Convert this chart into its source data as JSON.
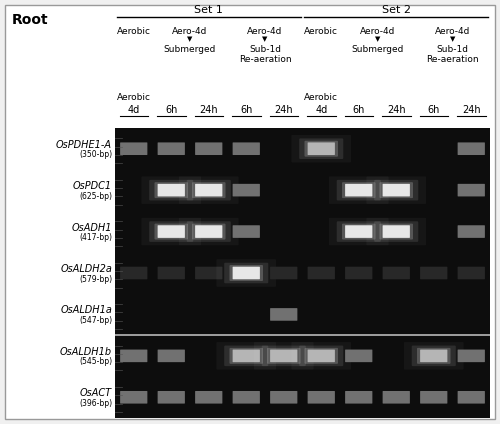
{
  "title": "Root",
  "set1_label": "Set 1",
  "set2_label": "Set 2",
  "time_labels": [
    "4d",
    "6h",
    "24h",
    "6h",
    "24h",
    "4d",
    "6h",
    "24h",
    "6h",
    "24h"
  ],
  "gene_labels_italic": [
    "OsPDHE1-A",
    "OsPDC1",
    "OsADH1",
    "OsALDH2a",
    "OsALDH1a",
    "OsALDH1b",
    "OsACT"
  ],
  "gene_labels_size": [
    "(350-bp)",
    "(625-bp)",
    "(417-bp)",
    "(579-bp)",
    "(547-bp)",
    "(545-bp)",
    "(396-bp)"
  ],
  "band_intensity": [
    [
      2,
      2,
      2,
      2,
      0,
      3,
      0,
      0,
      0,
      2
    ],
    [
      0,
      4,
      4,
      2,
      0,
      0,
      4,
      4,
      0,
      2
    ],
    [
      0,
      4,
      4,
      2,
      0,
      0,
      4,
      4,
      0,
      2
    ],
    [
      1,
      1,
      1,
      4,
      1,
      1,
      1,
      1,
      1,
      1
    ],
    [
      0,
      0,
      0,
      0,
      2,
      0,
      0,
      0,
      0,
      0
    ],
    [
      2,
      2,
      0,
      3,
      3,
      3,
      2,
      0,
      3,
      2
    ],
    [
      2,
      2,
      2,
      2,
      2,
      2,
      2,
      2,
      2,
      2
    ]
  ],
  "outer_bg": "#f0f0f0",
  "white_bg": "#ffffff",
  "gel_bg": "#0d0d0d",
  "separator_white_line_after_row": 4
}
